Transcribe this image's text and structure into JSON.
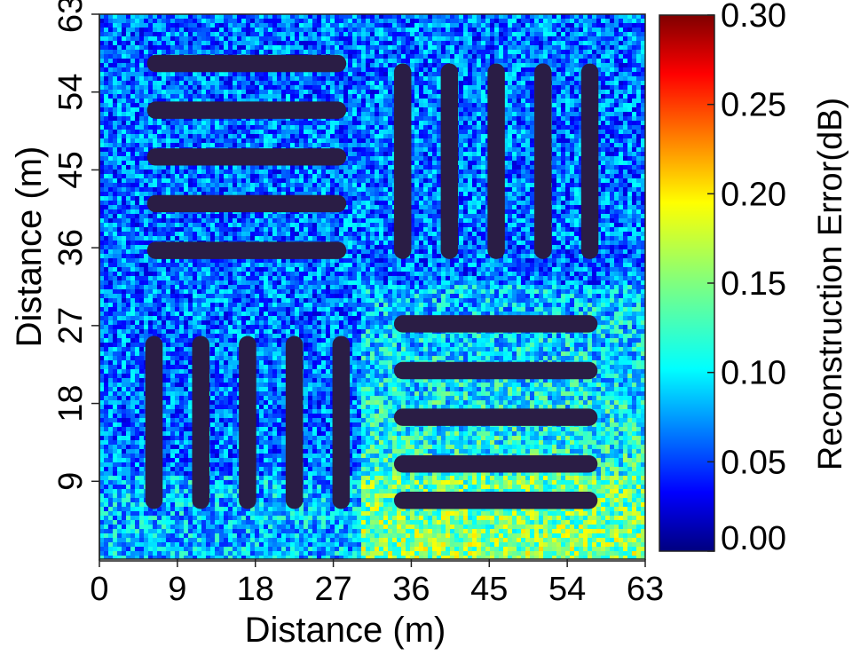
{
  "chart_data": {
    "type": "heatmap",
    "title": "",
    "xlabel": "Distance (m)",
    "ylabel": "Distance (m)",
    "xlim": [
      0,
      63
    ],
    "ylim": [
      0,
      63
    ],
    "x_ticks": [
      "0",
      "9",
      "18",
      "27",
      "36",
      "45",
      "54",
      "63"
    ],
    "y_ticks": [
      "9",
      "18",
      "27",
      "36",
      "45",
      "54",
      "63"
    ],
    "colorbar": {
      "label": "Reconstruction Error(dB)",
      "range": [
        0.0,
        0.3
      ],
      "ticks": [
        "0.00",
        "0.05",
        "0.10",
        "0.15",
        "0.20",
        "0.25",
        "0.30"
      ],
      "colormap": "jet"
    },
    "background_error_db": 0.07,
    "bar_error_db": 0.0,
    "bars": [
      {
        "group": "top-left-horizontal",
        "x": [
          5.5,
          28.5
        ],
        "y": [
          56.3,
          58.3
        ]
      },
      {
        "group": "top-left-horizontal",
        "x": [
          5.5,
          28.5
        ],
        "y": [
          50.9,
          52.9
        ]
      },
      {
        "group": "top-left-horizontal",
        "x": [
          5.5,
          28.5
        ],
        "y": [
          45.5,
          47.5
        ]
      },
      {
        "group": "top-left-horizontal",
        "x": [
          5.5,
          28.5
        ],
        "y": [
          40.1,
          42.1
        ]
      },
      {
        "group": "top-left-horizontal",
        "x": [
          5.5,
          28.5
        ],
        "y": [
          34.7,
          36.7
        ]
      },
      {
        "group": "top-right-vertical",
        "x": [
          34.0,
          36.0
        ],
        "y": [
          34.7,
          57.3
        ]
      },
      {
        "group": "top-right-vertical",
        "x": [
          39.4,
          41.4
        ],
        "y": [
          34.7,
          57.3
        ]
      },
      {
        "group": "top-right-vertical",
        "x": [
          44.8,
          46.8
        ],
        "y": [
          34.7,
          57.3
        ]
      },
      {
        "group": "top-right-vertical",
        "x": [
          50.2,
          52.2
        ],
        "y": [
          34.7,
          57.3
        ]
      },
      {
        "group": "top-right-vertical",
        "x": [
          55.6,
          57.6
        ],
        "y": [
          34.7,
          57.3
        ]
      },
      {
        "group": "bottom-left-vertical",
        "x": [
          5.3,
          7.3
        ],
        "y": [
          5.8,
          25.8
        ]
      },
      {
        "group": "bottom-left-vertical",
        "x": [
          10.7,
          12.7
        ],
        "y": [
          5.8,
          25.8
        ]
      },
      {
        "group": "bottom-left-vertical",
        "x": [
          16.1,
          18.1
        ],
        "y": [
          5.8,
          25.8
        ]
      },
      {
        "group": "bottom-left-vertical",
        "x": [
          21.5,
          23.5
        ],
        "y": [
          5.8,
          25.8
        ]
      },
      {
        "group": "bottom-left-vertical",
        "x": [
          26.9,
          28.9
        ],
        "y": [
          5.8,
          25.8
        ]
      },
      {
        "group": "bottom-right-horizontal",
        "x": [
          34.0,
          57.5
        ],
        "y": [
          26.2,
          28.2
        ]
      },
      {
        "group": "bottom-right-horizontal",
        "x": [
          34.0,
          57.5
        ],
        "y": [
          20.8,
          22.8
        ]
      },
      {
        "group": "bottom-right-horizontal",
        "x": [
          34.0,
          57.5
        ],
        "y": [
          15.4,
          17.4
        ]
      },
      {
        "group": "bottom-right-horizontal",
        "x": [
          34.0,
          57.5
        ],
        "y": [
          10.0,
          12.0
        ]
      },
      {
        "group": "bottom-right-horizontal",
        "x": [
          34.0,
          57.5
        ],
        "y": [
          5.8,
          7.8
        ]
      }
    ],
    "grid": false,
    "legend": "none"
  }
}
